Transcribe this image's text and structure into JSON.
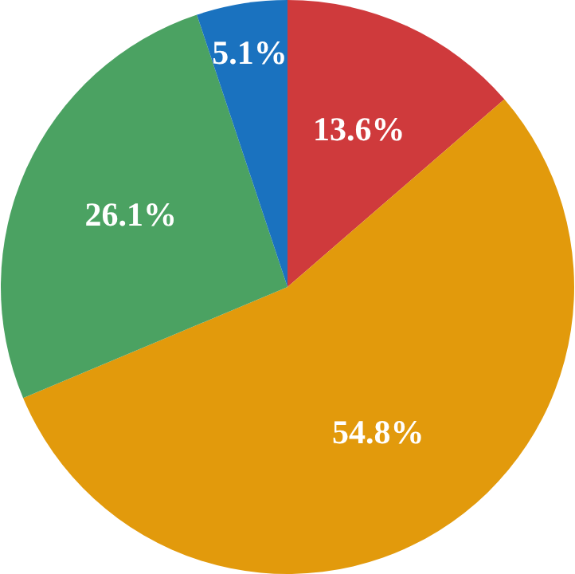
{
  "chart_data": {
    "type": "pie",
    "categories": [
      null,
      null,
      null,
      null
    ],
    "values": [
      13.6,
      54.8,
      26.1,
      5.1
    ],
    "value_labels": [
      "13.6%",
      "54.8%",
      "26.1%",
      "5.1%"
    ],
    "colors": [
      "#cf3a3c",
      "#e29a0c",
      "#4ba262",
      "#1a72bf"
    ]
  }
}
